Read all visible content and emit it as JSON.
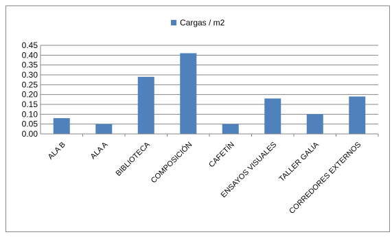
{
  "chart_data": {
    "type": "bar",
    "title": "",
    "xlabel": "",
    "ylabel": "",
    "legend_position": "top",
    "grid": true,
    "ylim": [
      0,
      0.45
    ],
    "yticks": [
      "0.00",
      "0.05",
      "0.10",
      "0.15",
      "0.20",
      "0.25",
      "0.30",
      "0.35",
      "0.40",
      "0.45"
    ],
    "categories": [
      "ALA B",
      "ALA A",
      "BIBLIOTECA",
      "COMPOSICIÓN",
      "CAFETÍN",
      "ENSAYOS VISUALES",
      "TALLER GALIA",
      "CORREDORES EXTERNOS"
    ],
    "series": [
      {
        "name": "Cargas / m2",
        "color": "#4f81bd",
        "values": [
          0.08,
          0.05,
          0.29,
          0.41,
          0.05,
          0.18,
          0.1,
          0.19
        ]
      }
    ]
  }
}
